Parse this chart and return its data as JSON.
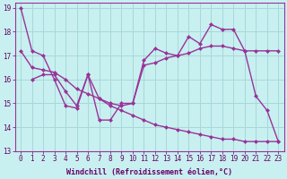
{
  "bg_color": "#c8f0f0",
  "grid_color": "#a8d8d8",
  "line_color": "#993399",
  "xlim": [
    -0.5,
    23.5
  ],
  "ylim": [
    13,
    19.2
  ],
  "xticks": [
    0,
    1,
    2,
    3,
    4,
    5,
    6,
    7,
    8,
    9,
    10,
    11,
    12,
    13,
    14,
    15,
    16,
    17,
    18,
    19,
    20,
    21,
    22,
    23
  ],
  "yticks": [
    13,
    14,
    15,
    16,
    17,
    18,
    19
  ],
  "xlabel": "Windchill (Refroidissement éolien,°C)",
  "tick_fontsize": 5.5,
  "label_fontsize": 6.0,
  "line_width": 1.0,
  "marker_size": 2.5,
  "line1_x": [
    0,
    1,
    2,
    3,
    4,
    5,
    6,
    7,
    8,
    9,
    10,
    11,
    12,
    13,
    14,
    15,
    16,
    17,
    18,
    19,
    20,
    21,
    22,
    23
  ],
  "line1_y": [
    19.0,
    17.2,
    17.0,
    16.0,
    14.9,
    14.8,
    16.2,
    14.3,
    14.3,
    15.0,
    15.0,
    16.8,
    17.3,
    17.1,
    17.0,
    17.8,
    17.5,
    18.3,
    18.1,
    18.1,
    17.2,
    15.3,
    14.7,
    13.4
  ],
  "line2_x": [
    1,
    2,
    3,
    4,
    5,
    6,
    7,
    8,
    9,
    10,
    11,
    12,
    13,
    14,
    15,
    16,
    17,
    18,
    19,
    20,
    21,
    22,
    23
  ],
  "line2_y": [
    16.0,
    16.2,
    16.2,
    15.5,
    14.9,
    16.2,
    15.2,
    15.0,
    14.9,
    15.0,
    16.6,
    16.7,
    16.9,
    17.0,
    17.1,
    17.3,
    17.4,
    17.4,
    17.3,
    17.2,
    17.2,
    17.2,
    17.2
  ],
  "line3_x": [
    0,
    1,
    2,
    3,
    4,
    5,
    6,
    7,
    8,
    9,
    10,
    11,
    12,
    13,
    14,
    15,
    16,
    17,
    18,
    19,
    20,
    21,
    22,
    23
  ],
  "line3_y": [
    17.2,
    16.5,
    16.4,
    16.3,
    16.0,
    15.6,
    15.4,
    15.2,
    14.9,
    14.7,
    14.5,
    14.3,
    14.1,
    14.0,
    13.9,
    13.8,
    13.7,
    13.6,
    13.5,
    13.5,
    13.4,
    13.4,
    13.4,
    13.4
  ]
}
